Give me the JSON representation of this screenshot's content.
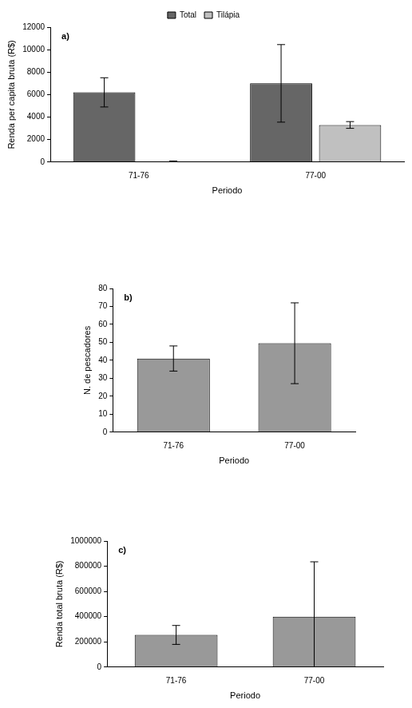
{
  "chart_data": [
    {
      "type": "bar",
      "annotations": [
        "a)"
      ],
      "x_label": "Periodo",
      "y_label": "Renda per capita bruta (R$)",
      "categories": [
        "71-76",
        "77-00"
      ],
      "series": [
        {
          "name": "Total",
          "color": "#666666",
          "values": [
            6200,
            7000
          ],
          "errors": [
            1300,
            3450
          ]
        },
        {
          "name": "Tilápia",
          "color": "#c0c0c0",
          "values": [
            50,
            3300
          ],
          "errors": [
            50,
            300
          ]
        }
      ],
      "ylim": [
        0,
        12000
      ],
      "yticks": [
        0,
        2000,
        4000,
        6000,
        8000,
        10000,
        12000
      ],
      "grid": false,
      "legend": "top"
    },
    {
      "type": "bar",
      "annotations": [
        "b)"
      ],
      "x_label": "Periodo",
      "y_label": "N. de pescadores",
      "categories": [
        "71-76",
        "77-00"
      ],
      "values": [
        41,
        49.5
      ],
      "errors": [
        7,
        22.5
      ],
      "color": "#999999",
      "ylim": [
        0,
        80
      ],
      "yticks": [
        0,
        10,
        20,
        30,
        40,
        50,
        60,
        70,
        80
      ],
      "grid": false
    },
    {
      "type": "bar",
      "annotations": [
        "c)"
      ],
      "x_label": "Periodo",
      "y_label": "Renda total bruta (R$)",
      "categories": [
        "71-76",
        "77-00"
      ],
      "values": [
        255000,
        400000
      ],
      "errors": [
        75000,
        435000
      ],
      "color": "#999999",
      "ylim": [
        0,
        1000000
      ],
      "yticks": [
        0,
        200000,
        400000,
        600000,
        800000,
        1000000
      ],
      "grid": false
    }
  ]
}
